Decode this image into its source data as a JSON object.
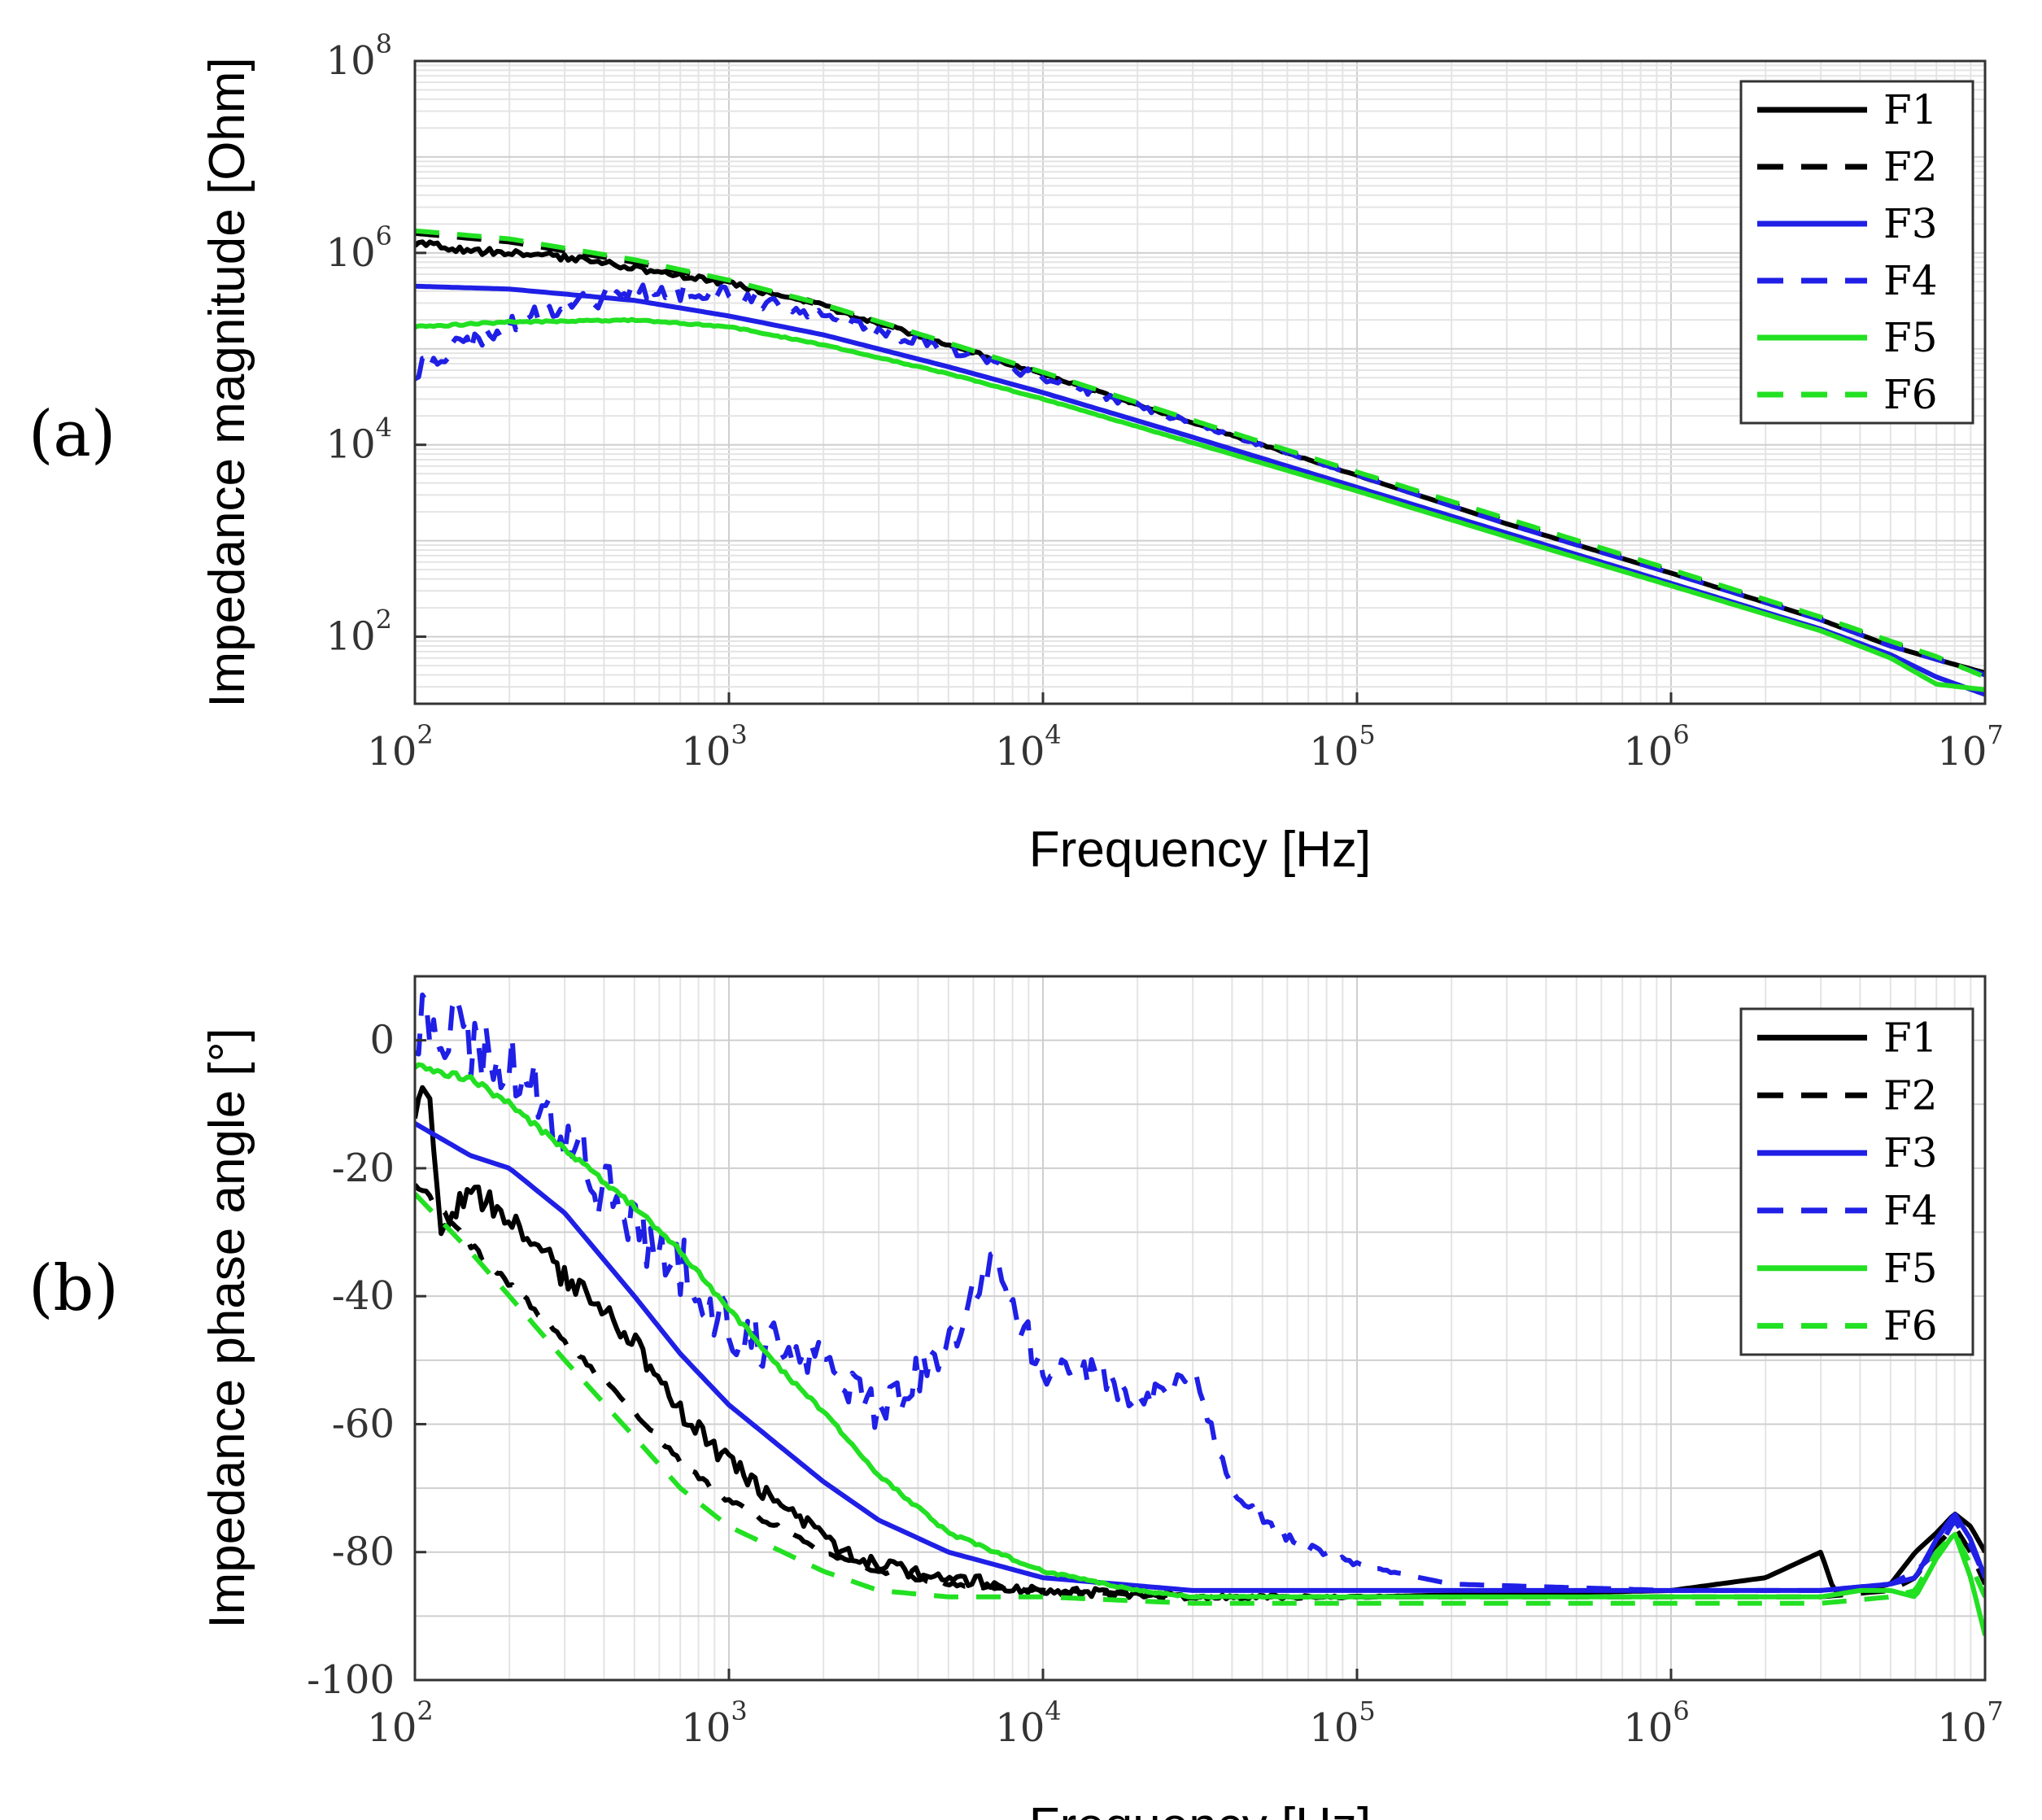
{
  "chart_data": [
    {
      "panel_label": "(a)",
      "type": "line",
      "xscale": "log",
      "yscale": "log",
      "xlabel": "Frequency [Hz]",
      "ylabel": "Impedance magnitude [Ohm]",
      "xlim": [
        100,
        10000000
      ],
      "ylim": [
        20,
        100000000
      ],
      "x_ticks": [
        {
          "base": "10",
          "exp": "2",
          "value": 100
        },
        {
          "base": "10",
          "exp": "3",
          "value": 1000
        },
        {
          "base": "10",
          "exp": "4",
          "value": 10000
        },
        {
          "base": "10",
          "exp": "5",
          "value": 100000
        },
        {
          "base": "10",
          "exp": "6",
          "value": 1000000
        },
        {
          "base": "10",
          "exp": "7",
          "value": 10000000
        }
      ],
      "y_ticks": [
        {
          "base": "10",
          "exp": "2",
          "value": 100
        },
        {
          "base": "10",
          "exp": "4",
          "value": 10000
        },
        {
          "base": "10",
          "exp": "6",
          "value": 1000000
        },
        {
          "base": "10",
          "exp": "8",
          "value": 100000000
        }
      ],
      "legend_position": "top-right",
      "series": [
        {
          "name": "F1",
          "color": "#000000",
          "dash": "solid",
          "x": [
            100,
            130,
            200,
            300,
            500,
            1000,
            2000,
            5000,
            10000,
            30000,
            100000,
            300000,
            1000000,
            3000000,
            5000000,
            7000000,
            10000000
          ],
          "y": [
            1300000,
            1100000,
            1000000,
            900000,
            700000,
            480000,
            280000,
            110000,
            55000,
            17000,
            4800,
            1500,
            460,
            150,
            80,
            58,
            42
          ],
          "jitter": 0.04
        },
        {
          "name": "F2",
          "color": "#000000",
          "dash": "dashed",
          "x": [
            100,
            200,
            500,
            1000,
            2000,
            5000,
            10000,
            30000,
            100000,
            300000,
            1000000,
            3000000,
            5000000,
            7000000,
            10000000
          ],
          "y": [
            1600000,
            1300000,
            800000,
            500000,
            280000,
            110000,
            55000,
            17000,
            5000,
            1600,
            480,
            155,
            85,
            60,
            40
          ],
          "jitter": 0
        },
        {
          "name": "F3",
          "color": "#1f1fe6",
          "dash": "solid",
          "x": [
            100,
            200,
            500,
            1000,
            2000,
            5000,
            10000,
            30000,
            100000,
            300000,
            1000000,
            3000000,
            5000000,
            7000000,
            10000000
          ],
          "y": [
            450000,
            420000,
            320000,
            220000,
            140000,
            65000,
            35000,
            12000,
            3600,
            1200,
            360,
            120,
            65,
            38,
            25
          ],
          "jitter": 0
        },
        {
          "name": "F4",
          "color": "#1f1fe6",
          "dash": "dashed",
          "x": [
            100,
            150,
            200,
            300,
            500,
            1000,
            2000,
            5000,
            10000,
            30000,
            100000,
            300000,
            1000000,
            3000000,
            5000000,
            7000000,
            10000000
          ],
          "y": [
            60000,
            120000,
            180000,
            280000,
            400000,
            380000,
            220000,
            100000,
            50000,
            17000,
            4800,
            1500,
            460,
            150,
            80,
            58,
            40
          ],
          "jitter": 0.12
        },
        {
          "name": "F5",
          "color": "#22e022",
          "dash": "solid",
          "x": [
            100,
            200,
            500,
            1000,
            2000,
            5000,
            10000,
            30000,
            100000,
            300000,
            1000000,
            3000000,
            5000000,
            7000000,
            10000000
          ],
          "y": [
            170000,
            190000,
            200000,
            170000,
            110000,
            55000,
            30000,
            10500,
            3300,
            1100,
            340,
            115,
            60,
            32,
            28
          ],
          "jitter": 0.01
        },
        {
          "name": "F6",
          "color": "#22e022",
          "dash": "dashed",
          "x": [
            100,
            200,
            500,
            1000,
            2000,
            5000,
            10000,
            30000,
            100000,
            300000,
            1000000,
            3000000,
            5000000,
            7000000,
            10000000
          ],
          "y": [
            1700000,
            1400000,
            850000,
            520000,
            290000,
            115000,
            57000,
            18000,
            5200,
            1700,
            500,
            160,
            90,
            62,
            38
          ],
          "jitter": 0
        }
      ]
    },
    {
      "panel_label": "(b)",
      "type": "line",
      "xscale": "log",
      "yscale": "linear",
      "xlabel": "Frequency [Hz]",
      "ylabel": "Impedance phase angle [°]",
      "xlim": [
        100,
        10000000
      ],
      "ylim": [
        -100,
        10
      ],
      "x_ticks": [
        {
          "base": "10",
          "exp": "2",
          "value": 100
        },
        {
          "base": "10",
          "exp": "3",
          "value": 1000
        },
        {
          "base": "10",
          "exp": "4",
          "value": 10000
        },
        {
          "base": "10",
          "exp": "5",
          "value": 100000
        },
        {
          "base": "10",
          "exp": "6",
          "value": 1000000
        },
        {
          "base": "10",
          "exp": "7",
          "value": 10000000
        }
      ],
      "y_ticks": [
        {
          "label": "0",
          "value": 0
        },
        {
          "label": "-20",
          "value": -20
        },
        {
          "label": "-40",
          "value": -40
        },
        {
          "label": "-60",
          "value": -60
        },
        {
          "label": "-80",
          "value": -80
        },
        {
          "label": "-100",
          "value": -100
        }
      ],
      "legend_position": "top-right",
      "series": [
        {
          "name": "F1",
          "color": "#000000",
          "dash": "solid",
          "x": [
            100,
            110,
            120,
            150,
            200,
            300,
            500,
            700,
            1000,
            1500,
            2000,
            3000,
            5000,
            10000,
            30000,
            100000,
            1000000,
            2000000,
            3000000,
            3300000,
            4000000,
            5000000,
            6000000,
            7000000,
            8000000,
            9000000,
            10000000
          ],
          "y": [
            -10,
            -7,
            -30,
            -23,
            -28,
            -37,
            -47,
            -58,
            -66,
            -73,
            -78,
            -82,
            -84,
            -86,
            -87,
            -87,
            -86,
            -84,
            -80,
            -86,
            -86,
            -85,
            -80,
            -77,
            -74,
            -76,
            -80
          ],
          "jitter": 2.2
        },
        {
          "name": "F2",
          "color": "#000000",
          "dash": "dashed",
          "x": [
            100,
            150,
            200,
            300,
            500,
            700,
            1000,
            2000,
            3000,
            5000,
            10000,
            30000,
            100000,
            1000000,
            3000000,
            5000000,
            6000000,
            7000000,
            8000000,
            9000000,
            10000000
          ],
          "y": [
            -22,
            -32,
            -38,
            -47,
            -58,
            -66,
            -72,
            -80,
            -83,
            -85,
            -86,
            -87,
            -87,
            -87,
            -87,
            -86,
            -84,
            -79,
            -76,
            -80,
            -85
          ],
          "jitter": 0.6
        },
        {
          "name": "F3",
          "color": "#1f1fe6",
          "dash": "solid",
          "x": [
            100,
            150,
            200,
            300,
            500,
            700,
            1000,
            2000,
            3000,
            5000,
            10000,
            30000,
            100000,
            1000000,
            3000000,
            5000000,
            6000000,
            7000000,
            8000000,
            9000000,
            10000000
          ],
          "y": [
            -13,
            -18,
            -20,
            -27,
            -40,
            -49,
            -57,
            -69,
            -75,
            -80,
            -84,
            -86,
            -86,
            -86,
            -86,
            -85,
            -84,
            -78,
            -74,
            -78,
            -84
          ],
          "jitter": 0
        },
        {
          "name": "F4",
          "color": "#1f1fe6",
          "dash": "dashed",
          "x": [
            100,
            150,
            200,
            300,
            500,
            700,
            1000,
            2000,
            3000,
            5000,
            7000,
            10000,
            15000,
            20000,
            30000,
            40000,
            60000,
            100000,
            200000,
            1000000,
            3000000,
            5000000,
            6000000,
            7000000,
            8000000,
            9000000,
            10000000
          ],
          "y": [
            3,
            0,
            -3,
            -15,
            -30,
            -35,
            -45,
            -50,
            -58,
            -48,
            -34,
            -52,
            -52,
            -57,
            -52,
            -70,
            -78,
            -82,
            -85,
            -86,
            -86,
            -85,
            -83,
            -80,
            -75,
            -79,
            -84
          ],
          "jitter": 6.5
        },
        {
          "name": "F5",
          "color": "#22e022",
          "dash": "solid",
          "x": [
            100,
            150,
            200,
            300,
            500,
            700,
            1000,
            1500,
            2000,
            3000,
            5000,
            10000,
            20000,
            30000,
            100000,
            1000000,
            3000000,
            4000000,
            5000000,
            6000000,
            7000000,
            8000000,
            9000000,
            10000000
          ],
          "y": [
            -4,
            -6,
            -10,
            -17,
            -26,
            -33,
            -42,
            -52,
            -58,
            -68,
            -77,
            -83,
            -86,
            -87,
            -87,
            -87,
            -87,
            -86,
            -86,
            -87,
            -81,
            -77,
            -84,
            -93
          ],
          "jitter": 0.5
        },
        {
          "name": "F6",
          "color": "#22e022",
          "dash": "dashed",
          "x": [
            100,
            150,
            200,
            300,
            500,
            700,
            1000,
            2000,
            3000,
            5000,
            10000,
            30000,
            100000,
            1000000,
            3000000,
            5000000,
            6000000,
            7000000,
            8000000,
            9000000,
            10000000
          ],
          "y": [
            -24,
            -33,
            -40,
            -50,
            -62,
            -70,
            -76,
            -83,
            -86,
            -87,
            -87,
            -88,
            -88,
            -88,
            -88,
            -87,
            -86,
            -80,
            -77,
            -82,
            -87
          ],
          "jitter": 0
        }
      ]
    }
  ]
}
